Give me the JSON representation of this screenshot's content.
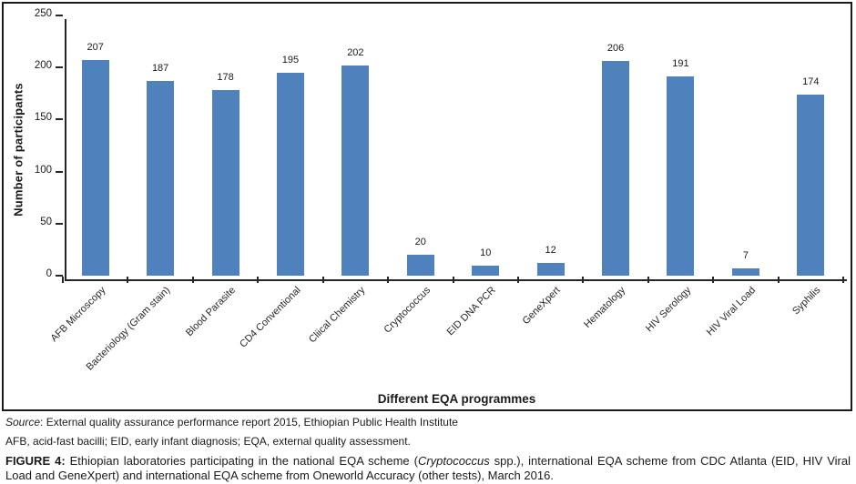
{
  "chart_data": {
    "type": "bar",
    "title": "",
    "xlabel": "Different EQA programmes",
    "ylabel": "Number of participants",
    "categories": [
      "AFB Microscopy",
      "Bacteriology (Gram stain)",
      "Blood Parasite",
      "CD4 Conventional",
      "Cliical Chemistry",
      "Cryptococcus",
      "EID DNA PCR",
      "GeneXpert",
      "Hematology",
      "HIV Serology",
      "HIV Viral Load",
      "Syphilis"
    ],
    "values": [
      207,
      187,
      178,
      195,
      202,
      20,
      10,
      12,
      206,
      191,
      7,
      174
    ],
    "ylim": [
      0,
      250
    ],
    "yticks": [
      0,
      50,
      100,
      150,
      200,
      250
    ],
    "grid": false,
    "legend": "none",
    "bar_color": "#4F81BD",
    "axis_color": "#262626",
    "value_labels_shown": true
  },
  "caption": {
    "source_label": "Source",
    "source_text": ": External quality assurance performance report 2015, Ethiopian Public Health Institute",
    "abbreviations": "AFB, acid-fast bacilli; EID, early infant diagnosis; EQA, external quality assessment.",
    "figure_label": "FIGURE 4:",
    "figure_text_before_italic": " Ethiopian laboratories participating in the national EQA scheme (",
    "figure_italic": "Cryptococcus",
    "figure_text_after_italic": " spp.), international EQA scheme from CDC Atlanta (EID, HIV Viral Load and GeneXpert) and international EQA scheme from Oneworld Accuracy (other tests), March 2016."
  }
}
